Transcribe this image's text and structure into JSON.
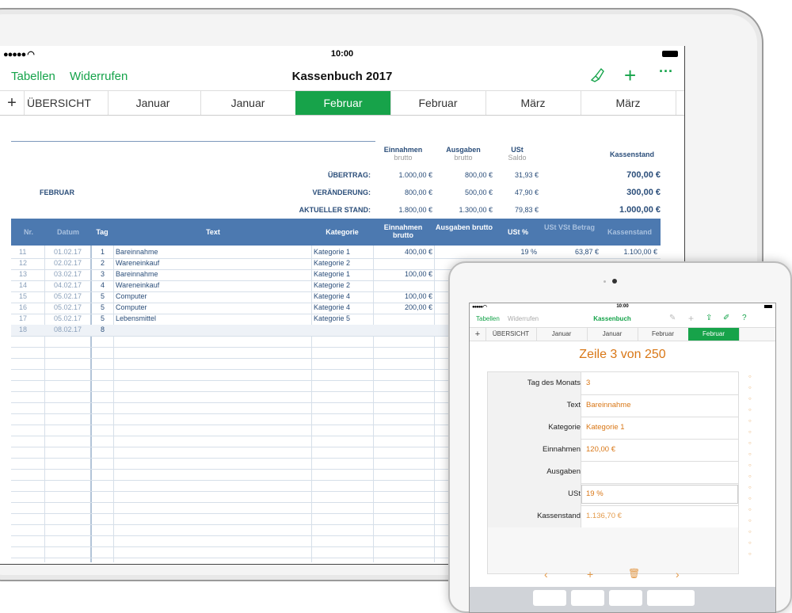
{
  "main_ipad": {
    "status": {
      "time": "10:00",
      "signal": "●●●●● ◠"
    },
    "toolbar": {
      "left_link_1": "Tabellen",
      "left_link_2": "Widerrufen",
      "title": "Kassenbuch 2017"
    },
    "tabs": [
      "ÜBERSICHT",
      "Januar",
      "Januar",
      "Februar",
      "Februar",
      "März",
      "März"
    ],
    "active_tab": 3,
    "summary": {
      "headers": [
        {
          "label": "Einnahmen",
          "sub": "brutto"
        },
        {
          "label": "Ausgaben",
          "sub": "brutto"
        },
        {
          "label": "USt",
          "sub": "Saldo"
        },
        {
          "label": "Kassenstand",
          "sub": ""
        }
      ],
      "month_label": "FEBRUAR",
      "rows": [
        {
          "label": "ÜBERTRAG:",
          "einnahmen": "1.000,00 €",
          "ausgaben": "800,00 €",
          "ust": "31,93 €",
          "kassenstand": "700,00 €"
        },
        {
          "label": "VERÄNDERUNG:",
          "einnahmen": "800,00 €",
          "ausgaben": "500,00 €",
          "ust": "47,90 €",
          "kassenstand": "300,00 €"
        },
        {
          "label": "AKTUELLER STAND:",
          "einnahmen": "1.800,00 €",
          "ausgaben": "1.300,00 €",
          "ust": "79,83 €",
          "kassenstand": "1.000,00 €"
        }
      ]
    },
    "table": {
      "headers": {
        "nr": "Nr.",
        "datum": "Datum",
        "tag": "Tag",
        "text": "Text",
        "kategorie": "Kategorie",
        "einnahmen": "Einnahmen brutto",
        "ausgaben": "Ausgaben brutto",
        "ust": "USt %",
        "ust_betrag": "USt VSt Betrag",
        "kassenstand": "Kassenstand"
      },
      "rows": [
        {
          "nr": "11",
          "datum": "01.02.17",
          "tag": "1",
          "text": "Bareinnahme",
          "kategorie": "Kategorie 1",
          "einnahmen": "400,00 €",
          "ust": "19 %",
          "ust_betrag": "63,87 €",
          "kassenstand": "1.100,00 €"
        },
        {
          "nr": "12",
          "datum": "02.02.17",
          "tag": "2",
          "text": "Wareneinkauf",
          "kategorie": "Kategorie 2",
          "einnahmen": "",
          "ust": "",
          "ust_betrag": "",
          "kassenstand": ""
        },
        {
          "nr": "13",
          "datum": "03.02.17",
          "tag": "3",
          "text": "Bareinnahme",
          "kategorie": "Kategorie 1",
          "einnahmen": "100,00 €",
          "ust": "",
          "ust_betrag": "",
          "kassenstand": ""
        },
        {
          "nr": "14",
          "datum": "04.02.17",
          "tag": "4",
          "text": "Wareneinkauf",
          "kategorie": "Kategorie 2",
          "einnahmen": "",
          "ust": "",
          "ust_betrag": "",
          "kassenstand": ""
        },
        {
          "nr": "15",
          "datum": "05.02.17",
          "tag": "5",
          "text": "Computer",
          "kategorie": "Kategorie 4",
          "einnahmen": "100,00 €",
          "ust": "",
          "ust_betrag": "",
          "kassenstand": ""
        },
        {
          "nr": "16",
          "datum": "05.02.17",
          "tag": "5",
          "text": "Computer",
          "kategorie": "Kategorie 4",
          "einnahmen": "200,00 €",
          "ust": "",
          "ust_betrag": "",
          "kassenstand": ""
        },
        {
          "nr": "17",
          "datum": "05.02.17",
          "tag": "5",
          "text": "Lebensmittel",
          "kategorie": "Kategorie 5",
          "einnahmen": "",
          "ust": "",
          "ust_betrag": "",
          "kassenstand": ""
        },
        {
          "nr": "18",
          "datum": "08.02.17",
          "tag": "8",
          "text": "",
          "kategorie": "",
          "einnahmen": "",
          "ust": "",
          "ust_betrag": "",
          "kassenstand": ""
        }
      ]
    }
  },
  "mini_ipad": {
    "status": {
      "time": "10:00"
    },
    "toolbar": {
      "left_link_1": "Tabellen",
      "left_link_2": "Widerrufen",
      "title": "Kassenbuch"
    },
    "tabs": [
      "ÜBERSICHT",
      "Januar",
      "Januar",
      "Februar",
      "Februar"
    ],
    "active_tab": 4,
    "form_title": "Zeile 3 von 250",
    "fields": [
      {
        "label": "Tag des Monats",
        "value": "3"
      },
      {
        "label": "Text",
        "value": "Bareinnahme"
      },
      {
        "label": "Kategorie",
        "value": "Kategorie 1"
      },
      {
        "label": "Einnahmen",
        "value": "120,00 €"
      },
      {
        "label": "Ausgaben",
        "value": ""
      },
      {
        "label": "USt",
        "value": "19 %"
      },
      {
        "label": "Kassenstand",
        "value": "1.136,70 €"
      }
    ]
  },
  "colors": {
    "accent": "#17a34a",
    "header_blue": "#4c79b0",
    "text_blue": "#2b4e7a",
    "form_orange": "#d97716"
  }
}
